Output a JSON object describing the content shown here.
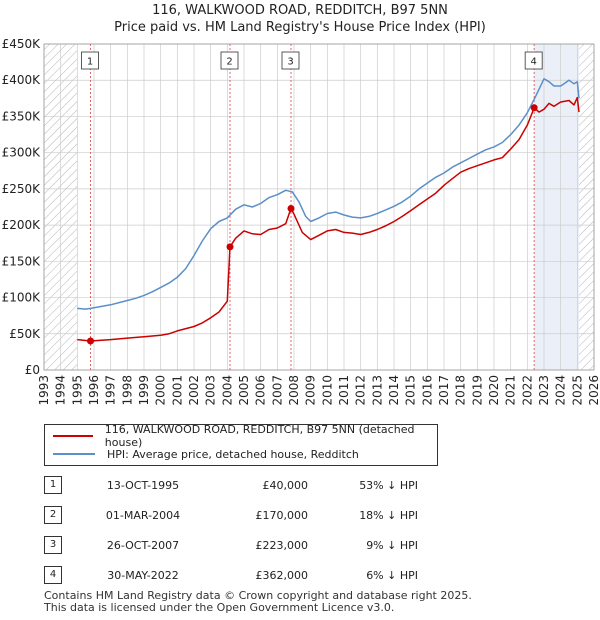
{
  "title_line1": "116, WALKWOOD ROAD, REDDITCH, B97 5NN",
  "title_line2": "Price paid vs. HM Land Registry's House Price Index (HPI)",
  "colors": {
    "property": "#cc0000",
    "hpi": "#5b8fc9",
    "grid": "#cccccc",
    "shade": "#dde6f3"
  },
  "chart_data": {
    "type": "line",
    "title": "116, WALKWOOD ROAD, REDDITCH, B97 5NN",
    "subtitle": "Price paid vs. HM Land Registry's House Price Index (HPI)",
    "xlabel": "",
    "ylabel": "",
    "xlim": [
      1993,
      2026
    ],
    "ylim": [
      0,
      450000
    ],
    "y_ticks": [
      0,
      50000,
      100000,
      150000,
      200000,
      250000,
      300000,
      350000,
      400000,
      450000
    ],
    "y_tick_labels": [
      "£0",
      "£50K",
      "£100K",
      "£150K",
      "£200K",
      "£250K",
      "£300K",
      "£350K",
      "£400K",
      "£450K"
    ],
    "x_ticks": [
      1993,
      1994,
      1995,
      1996,
      1997,
      1998,
      1999,
      2000,
      2001,
      2002,
      2003,
      2004,
      2005,
      2006,
      2007,
      2008,
      2009,
      2010,
      2011,
      2012,
      2013,
      2014,
      2015,
      2016,
      2017,
      2018,
      2019,
      2020,
      2021,
      2022,
      2023,
      2024,
      2025,
      2026
    ],
    "x_tick_labels": [
      "1993",
      "1994",
      "1995",
      "1996",
      "1997",
      "1998",
      "1999",
      "2000",
      "2001",
      "2002",
      "2003",
      "2004",
      "2005",
      "2006",
      "2007",
      "2008",
      "2009",
      "2010",
      "2011",
      "2012",
      "2013",
      "2014",
      "2015",
      "2016",
      "2017",
      "2018",
      "2019",
      "2020",
      "2021",
      "2022",
      "2023",
      "2024",
      "2025",
      "2026"
    ],
    "grid": true,
    "hatched_ranges": [
      [
        1993,
        1995.0
      ],
      [
        2025.1,
        2026
      ]
    ],
    "series": [
      {
        "name": "116, WALKWOOD ROAD, REDDITCH, B97 5NN (detached house)",
        "color": "#cc0000",
        "x": [
          1995.0,
          1995.79,
          1996.0,
          1997.0,
          1998.0,
          1999.0,
          2000.0,
          2000.5,
          2001.0,
          2002.0,
          2002.5,
          2003.0,
          2003.5,
          2004.0,
          2004.16,
          2004.5,
          2005.0,
          2005.5,
          2006.0,
          2006.5,
          2007.0,
          2007.5,
          2007.82,
          2008.0,
          2008.5,
          2009.0,
          2009.5,
          2010.0,
          2010.5,
          2011.0,
          2011.5,
          2012.0,
          2012.5,
          2013.0,
          2013.5,
          2014.0,
          2014.5,
          2015.0,
          2015.5,
          2016.0,
          2016.5,
          2017.0,
          2017.5,
          2018.0,
          2018.5,
          2019.0,
          2019.5,
          2020.0,
          2020.5,
          2021.0,
          2021.5,
          2022.0,
          2022.41,
          2022.7,
          2023.0,
          2023.3,
          2023.6,
          2024.0,
          2024.5,
          2024.8,
          2025.0,
          2025.1
        ],
        "y": [
          42000,
          40000,
          40500,
          42000,
          44000,
          46000,
          48000,
          50000,
          54000,
          60000,
          65000,
          72000,
          80000,
          95000,
          170000,
          182000,
          192000,
          188000,
          187000,
          194000,
          196000,
          202000,
          223000,
          215000,
          190000,
          180000,
          186000,
          192000,
          194000,
          190000,
          189000,
          187000,
          190000,
          194000,
          199000,
          205000,
          212000,
          220000,
          228000,
          236000,
          244000,
          255000,
          264000,
          273000,
          278000,
          282000,
          286000,
          290000,
          293000,
          305000,
          318000,
          338000,
          362000,
          356000,
          360000,
          368000,
          364000,
          370000,
          372000,
          366000,
          376000,
          356000
        ]
      },
      {
        "name": "HPI: Average price, detached house, Redditch",
        "color": "#5b8fc9",
        "x": [
          1995.0,
          1995.5,
          1996.0,
          1996.5,
          1997.0,
          1997.5,
          1998.0,
          1998.5,
          1999.0,
          1999.5,
          2000.0,
          2000.5,
          2001.0,
          2001.5,
          2002.0,
          2002.5,
          2003.0,
          2003.5,
          2004.0,
          2004.5,
          2005.0,
          2005.5,
          2006.0,
          2006.5,
          2007.0,
          2007.5,
          2007.9,
          2008.3,
          2008.7,
          2009.0,
          2009.5,
          2010.0,
          2010.5,
          2011.0,
          2011.5,
          2012.0,
          2012.5,
          2013.0,
          2013.5,
          2014.0,
          2014.5,
          2015.0,
          2015.5,
          2016.0,
          2016.5,
          2017.0,
          2017.5,
          2018.0,
          2018.5,
          2019.0,
          2019.5,
          2020.0,
          2020.5,
          2021.0,
          2021.5,
          2022.0,
          2022.5,
          2023.0,
          2023.3,
          2023.6,
          2024.0,
          2024.5,
          2024.8,
          2025.0,
          2025.1
        ],
        "y": [
          85000,
          84000,
          86000,
          88000,
          90000,
          93000,
          96000,
          99000,
          103000,
          108000,
          114000,
          120000,
          128000,
          140000,
          158000,
          178000,
          195000,
          205000,
          210000,
          222000,
          228000,
          225000,
          230000,
          238000,
          242000,
          248000,
          246000,
          232000,
          212000,
          205000,
          210000,
          216000,
          218000,
          214000,
          211000,
          210000,
          212000,
          216000,
          221000,
          226000,
          232000,
          240000,
          250000,
          258000,
          266000,
          272000,
          280000,
          286000,
          292000,
          298000,
          304000,
          308000,
          314000,
          325000,
          338000,
          355000,
          378000,
          402000,
          398000,
          392000,
          392000,
          400000,
          395000,
          398000,
          375000
        ]
      }
    ],
    "sale_markers": [
      {
        "num": "1",
        "x": 1995.79,
        "y": 40000
      },
      {
        "num": "2",
        "x": 2004.16,
        "y": 170000
      },
      {
        "num": "3",
        "x": 2007.82,
        "y": 223000
      },
      {
        "num": "4",
        "x": 2022.41,
        "y": 362000
      }
    ]
  },
  "legend": {
    "property_label": "116, WALKWOOD ROAD, REDDITCH, B97 5NN (detached house)",
    "hpi_label": "HPI: Average price, detached house, Redditch"
  },
  "sales": [
    {
      "num": "1",
      "date": "13-OCT-1995",
      "price": "£40,000",
      "hpi": "53% ↓ HPI"
    },
    {
      "num": "2",
      "date": "01-MAR-2004",
      "price": "£170,000",
      "hpi": "18% ↓ HPI"
    },
    {
      "num": "3",
      "date": "26-OCT-2007",
      "price": "£223,000",
      "hpi": "9% ↓ HPI"
    },
    {
      "num": "4",
      "date": "30-MAY-2022",
      "price": "£362,000",
      "hpi": "6% ↓ HPI"
    }
  ],
  "footer_line1": "Contains HM Land Registry data © Crown copyright and database right 2025.",
  "footer_line2": "This data is licensed under the Open Government Licence v3.0."
}
